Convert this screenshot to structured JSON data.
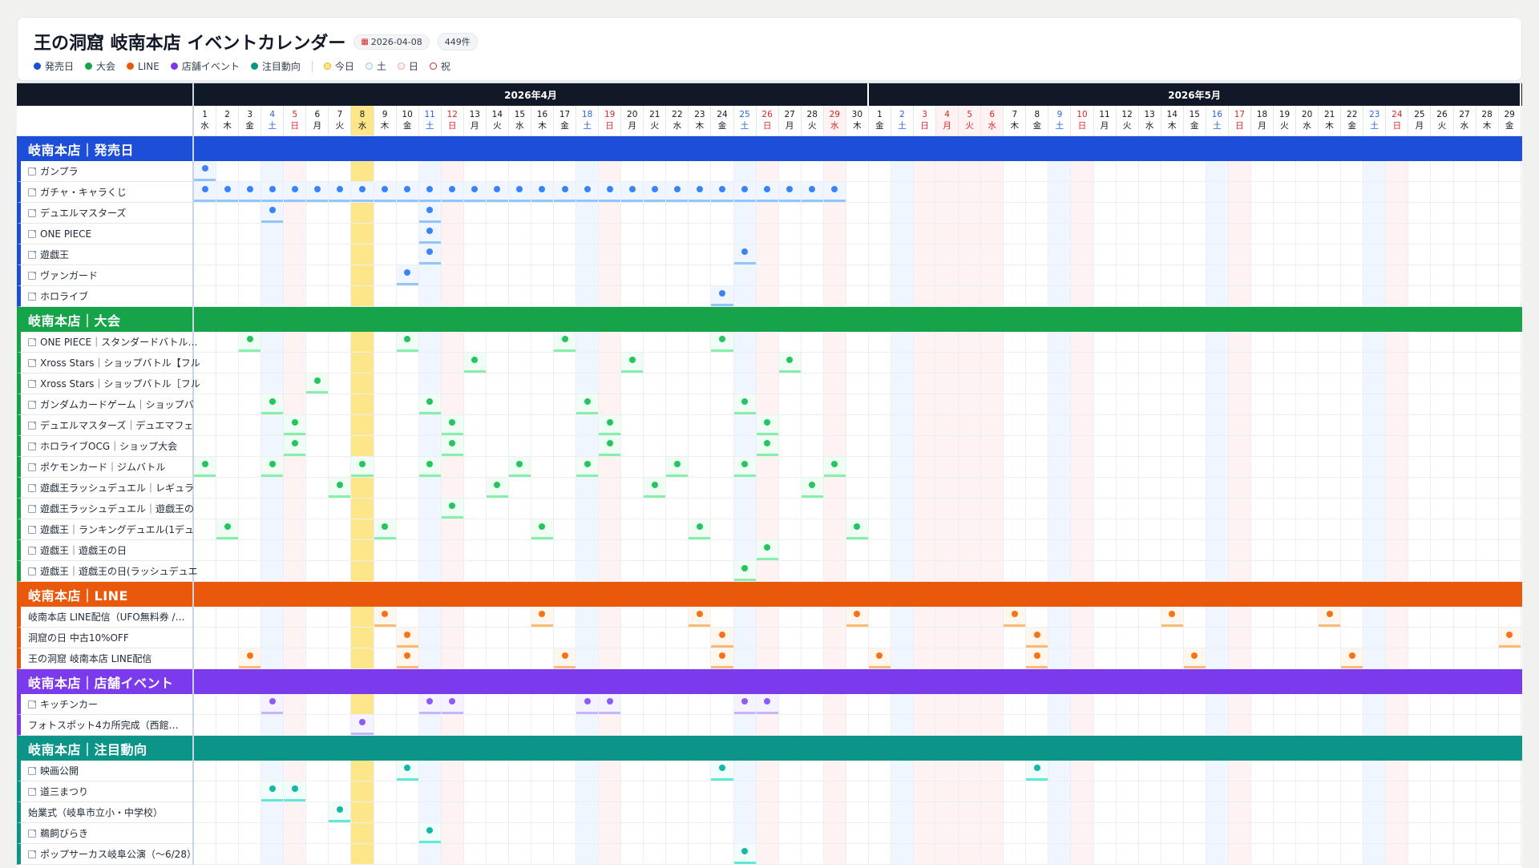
{
  "header": {
    "title": "王の洞窟 岐南本店 イベントカレンダー",
    "date_badge": "2026-04-08",
    "date_icon": "calendar-icon",
    "count_badge": "449件"
  },
  "legend": {
    "categories": [
      {
        "label": "発売日",
        "color": "#1d4ed8"
      },
      {
        "label": "大会",
        "color": "#16a34a"
      },
      {
        "label": "LINE",
        "color": "#ea580c"
      },
      {
        "label": "店舗イベント",
        "color": "#7c3aed"
      },
      {
        "label": "注目動向",
        "color": "#0d9488"
      }
    ],
    "markers": [
      {
        "label": "今日",
        "color": "#eab308",
        "fill": "#fde68a"
      },
      {
        "label": "土",
        "color": "#93c5fd",
        "fill": "#eff6ff"
      },
      {
        "label": "日",
        "color": "#fca5a5",
        "fill": "#fef2f2"
      },
      {
        "label": "祝",
        "color": "#dc2626",
        "fill": "#fff"
      }
    ]
  },
  "months": [
    {
      "label": "2026年4月",
      "days": 30
    },
    {
      "label": "2026年5月",
      "days": 29
    }
  ],
  "days": [
    {
      "d": "1",
      "w": "水",
      "k": ""
    },
    {
      "d": "2",
      "w": "木",
      "k": ""
    },
    {
      "d": "3",
      "w": "金",
      "k": ""
    },
    {
      "d": "4",
      "w": "土",
      "k": "sat"
    },
    {
      "d": "5",
      "w": "日",
      "k": "sun"
    },
    {
      "d": "6",
      "w": "月",
      "k": ""
    },
    {
      "d": "7",
      "w": "火",
      "k": ""
    },
    {
      "d": "8",
      "w": "水",
      "k": "today"
    },
    {
      "d": "9",
      "w": "木",
      "k": ""
    },
    {
      "d": "10",
      "w": "金",
      "k": ""
    },
    {
      "d": "11",
      "w": "土",
      "k": "sat"
    },
    {
      "d": "12",
      "w": "日",
      "k": "sun"
    },
    {
      "d": "13",
      "w": "月",
      "k": ""
    },
    {
      "d": "14",
      "w": "火",
      "k": ""
    },
    {
      "d": "15",
      "w": "水",
      "k": ""
    },
    {
      "d": "16",
      "w": "木",
      "k": ""
    },
    {
      "d": "17",
      "w": "金",
      "k": ""
    },
    {
      "d": "18",
      "w": "土",
      "k": "sat"
    },
    {
      "d": "19",
      "w": "日",
      "k": "sun"
    },
    {
      "d": "20",
      "w": "月",
      "k": ""
    },
    {
      "d": "21",
      "w": "火",
      "k": ""
    },
    {
      "d": "22",
      "w": "水",
      "k": ""
    },
    {
      "d": "23",
      "w": "木",
      "k": ""
    },
    {
      "d": "24",
      "w": "金",
      "k": ""
    },
    {
      "d": "25",
      "w": "土",
      "k": "sat"
    },
    {
      "d": "26",
      "w": "日",
      "k": "sun"
    },
    {
      "d": "27",
      "w": "月",
      "k": ""
    },
    {
      "d": "28",
      "w": "火",
      "k": ""
    },
    {
      "d": "29",
      "w": "水",
      "k": "hol"
    },
    {
      "d": "30",
      "w": "木",
      "k": ""
    },
    {
      "d": "1",
      "w": "金",
      "k": ""
    },
    {
      "d": "2",
      "w": "土",
      "k": "sat"
    },
    {
      "d": "3",
      "w": "日",
      "k": "sun"
    },
    {
      "d": "4",
      "w": "月",
      "k": "hol"
    },
    {
      "d": "5",
      "w": "火",
      "k": "hol"
    },
    {
      "d": "6",
      "w": "水",
      "k": "hol"
    },
    {
      "d": "7",
      "w": "木",
      "k": ""
    },
    {
      "d": "8",
      "w": "金",
      "k": ""
    },
    {
      "d": "9",
      "w": "土",
      "k": "sat"
    },
    {
      "d": "10",
      "w": "日",
      "k": "sun"
    },
    {
      "d": "11",
      "w": "月",
      "k": ""
    },
    {
      "d": "12",
      "w": "火",
      "k": ""
    },
    {
      "d": "13",
      "w": "水",
      "k": ""
    },
    {
      "d": "14",
      "w": "木",
      "k": ""
    },
    {
      "d": "15",
      "w": "金",
      "k": ""
    },
    {
      "d": "16",
      "w": "土",
      "k": "sat"
    },
    {
      "d": "17",
      "w": "日",
      "k": "sun"
    },
    {
      "d": "18",
      "w": "月",
      "k": ""
    },
    {
      "d": "19",
      "w": "火",
      "k": ""
    },
    {
      "d": "20",
      "w": "水",
      "k": ""
    },
    {
      "d": "21",
      "w": "木",
      "k": ""
    },
    {
      "d": "22",
      "w": "金",
      "k": ""
    },
    {
      "d": "23",
      "w": "土",
      "k": "sat"
    },
    {
      "d": "24",
      "w": "日",
      "k": "sun"
    },
    {
      "d": "25",
      "w": "月",
      "k": ""
    },
    {
      "d": "26",
      "w": "火",
      "k": ""
    },
    {
      "d": "27",
      "w": "水",
      "k": ""
    },
    {
      "d": "28",
      "w": "木",
      "k": ""
    },
    {
      "d": "29",
      "w": "金",
      "k": ""
    }
  ],
  "sections": [
    {
      "title": "岐南本店｜発売日",
      "color": "#1d4ed8",
      "dot": "#3b82f6",
      "line": "#93c5fd",
      "tint": "#eff6ff",
      "items": [
        {
          "label": "ガンプラ",
          "link": true,
          "dates": [
            "4/1"
          ]
        },
        {
          "label": "ガチャ・キャラくじ",
          "link": true,
          "range": [
            "4/1",
            "4/29"
          ]
        },
        {
          "label": "デュエルマスターズ",
          "link": true,
          "dates": [
            "4/4",
            "4/11"
          ]
        },
        {
          "label": "ONE PIECE",
          "link": true,
          "dates": [
            "4/11"
          ]
        },
        {
          "label": "遊戯王",
          "link": true,
          "dates": [
            "4/11",
            "4/25"
          ]
        },
        {
          "label": "ヴァンガード",
          "link": true,
          "dates": [
            "4/10"
          ]
        },
        {
          "label": "ホロライブ",
          "link": true,
          "dates": [
            "4/24"
          ]
        }
      ]
    },
    {
      "title": "岐南本店｜大会",
      "color": "#16a34a",
      "dot": "#22c55e",
      "line": "#86efac",
      "tint": "#f0fdf4",
      "items": [
        {
          "label": "ONE PIECE｜スタンダードバトル…",
          "link": true,
          "dates": [
            "4/3",
            "4/10",
            "4/17",
            "4/24"
          ]
        },
        {
          "label": "Xross Stars｜ショップバトル【フル",
          "link": true,
          "dates": [
            "4/13",
            "4/20",
            "4/27"
          ]
        },
        {
          "label": "Xross Stars｜ショップバトル［フル",
          "link": true,
          "dates": [
            "4/6"
          ]
        },
        {
          "label": "ガンダムカードゲーム｜ショップバ",
          "link": true,
          "dates": [
            "4/4",
            "4/11",
            "4/18",
            "4/25"
          ]
        },
        {
          "label": "デュエルマスターズ｜デュエマフェ",
          "link": true,
          "dates": [
            "4/5",
            "4/12",
            "4/19",
            "4/26"
          ]
        },
        {
          "label": "ホロライブOCG｜ショップ大会",
          "link": true,
          "dates": [
            "4/5",
            "4/12",
            "4/19",
            "4/26"
          ]
        },
        {
          "label": "ポケモンカード｜ジムバトル",
          "link": true,
          "dates": [
            "4/1",
            "4/4",
            "4/8",
            "4/11",
            "4/15",
            "4/18",
            "4/22",
            "4/25",
            "4/29"
          ]
        },
        {
          "label": "遊戯王ラッシュデュエル｜レギュラ",
          "link": true,
          "dates": [
            "4/7",
            "4/14",
            "4/21",
            "4/28"
          ]
        },
        {
          "label": "遊戯王ラッシュデュエル｜遊戯王の",
          "link": true,
          "dates": [
            "4/12"
          ]
        },
        {
          "label": "遊戯王｜ランキングデュエル(1デュ",
          "link": true,
          "dates": [
            "4/2",
            "4/9",
            "4/16",
            "4/23",
            "4/30"
          ]
        },
        {
          "label": "遊戯王｜遊戯王の日",
          "link": true,
          "dates": [
            "4/26"
          ]
        },
        {
          "label": "遊戯王｜遊戯王の日(ラッシュデュエ",
          "link": true,
          "dates": [
            "4/25"
          ]
        }
      ]
    },
    {
      "title": "岐南本店｜LINE",
      "color": "#ea580c",
      "dot": "#f97316",
      "line": "#fdba74",
      "tint": "#fff7ed",
      "items": [
        {
          "label": "岐南本店 LINE配信（UFO無料券 /…",
          "link": false,
          "dates": [
            "4/9",
            "4/16",
            "4/23",
            "4/30",
            "5/7",
            "5/14",
            "5/21"
          ]
        },
        {
          "label": "洞窟の日 中古10%OFF",
          "link": false,
          "dates": [
            "4/10",
            "4/24",
            "5/8",
            "5/29"
          ]
        },
        {
          "label": "王の洞窟 岐南本店 LINE配信",
          "link": false,
          "dates": [
            "4/3",
            "4/10",
            "4/17",
            "4/24",
            "5/1",
            "5/8",
            "5/15",
            "5/22"
          ]
        }
      ]
    },
    {
      "title": "岐南本店｜店舗イベント",
      "color": "#7c3aed",
      "dot": "#8b5cf6",
      "line": "#c4b5fd",
      "tint": "#f5f3ff",
      "items": [
        {
          "label": "キッチンカー",
          "link": true,
          "dates": [
            "4/4",
            "4/11",
            "4/12",
            "4/18",
            "4/19",
            "4/25",
            "4/26"
          ]
        },
        {
          "label": "フォトスポット4カ所完成（西館…",
          "link": false,
          "dates": [
            "4/8"
          ]
        }
      ]
    },
    {
      "title": "岐南本店｜注目動向",
      "color": "#0d9488",
      "dot": "#14b8a6",
      "line": "#5eead4",
      "tint": "#f0fdfa",
      "items": [
        {
          "label": "映画公開",
          "link": true,
          "dates": [
            "4/10",
            "4/24",
            "5/8"
          ]
        },
        {
          "label": "道三まつり",
          "link": true,
          "dates": [
            "4/4",
            "4/5"
          ]
        },
        {
          "label": "始業式（岐阜市立小・中学校）",
          "link": false,
          "dates": [
            "4/7"
          ]
        },
        {
          "label": "鵜飼びらき",
          "link": true,
          "dates": [
            "4/11"
          ]
        },
        {
          "label": "ポップサーカス岐阜公演（〜6/28）",
          "link": true,
          "dates": [
            "4/25"
          ]
        }
      ]
    }
  ]
}
